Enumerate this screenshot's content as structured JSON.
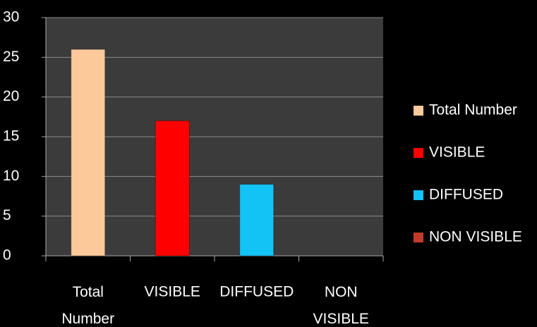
{
  "chart_data": {
    "type": "bar",
    "categories": [
      "Total Number",
      "VISIBLE",
      "DIFFUSED",
      "NON VISIBLE"
    ],
    "series": [
      {
        "name": "Total Number",
        "color": "#fbc99a",
        "values": [
          26,
          null,
          null,
          null
        ]
      },
      {
        "name": "VISIBLE",
        "color": "#ff0000",
        "values": [
          null,
          17,
          null,
          null
        ]
      },
      {
        "name": "DIFFUSED",
        "color": "#14c3f5",
        "values": [
          null,
          null,
          9,
          null
        ]
      },
      {
        "name": "NON VISIBLE",
        "color": "#c0392b",
        "values": [
          null,
          null,
          null,
          0
        ]
      }
    ],
    "ylim": [
      0,
      30
    ],
    "yticks": [
      0,
      5,
      10,
      15,
      20,
      25,
      30
    ],
    "grid": true,
    "legend": "right"
  }
}
